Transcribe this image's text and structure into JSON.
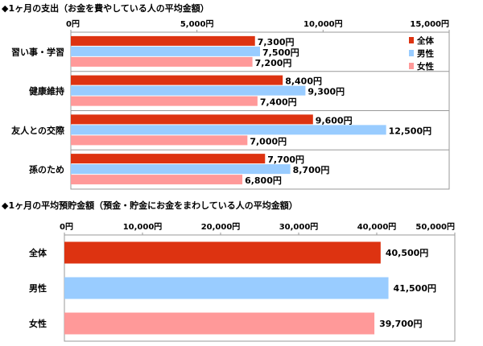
{
  "colors": {
    "all": "#dd3311",
    "male": "#99ccff",
    "female": "#ff9999"
  },
  "chart_data": [
    {
      "type": "bar",
      "orientation": "horizontal",
      "title": "◆1ヶ月の支出（お金を費やしている人の平均金額）",
      "xlim": [
        0,
        15000
      ],
      "ticks": [
        "0円",
        "5,000円",
        "10,000円",
        "15,000円"
      ],
      "tick_values": [
        0,
        5000,
        10000,
        15000
      ],
      "categories": [
        "習い事・学習",
        "健康維持",
        "友人との交際",
        "孫のため"
      ],
      "legend_position": "right",
      "series": [
        {
          "name": "全体",
          "color_key": "all",
          "values": [
            7300,
            8400,
            9600,
            7700
          ],
          "labels": [
            "7,300円",
            "8,400円",
            "9,600円",
            "7,700円"
          ]
        },
        {
          "name": "男性",
          "color_key": "male",
          "values": [
            7500,
            9300,
            12500,
            8700
          ],
          "labels": [
            "7,500円",
            "9,300円",
            "12,500円",
            "8,700円"
          ]
        },
        {
          "name": "女性",
          "color_key": "female",
          "values": [
            7200,
            7400,
            7000,
            6800
          ],
          "labels": [
            "7,200円",
            "7,400円",
            "7,000円",
            "6,800円"
          ]
        }
      ]
    },
    {
      "type": "bar",
      "orientation": "horizontal",
      "title": "◆1ヶ月の平均預貯金額（預金・貯金にお金をまわしている人の平均金額）",
      "xlim": [
        0,
        50000
      ],
      "ticks": [
        "0円",
        "10,000円",
        "20,000円",
        "30,000円",
        "40,000円",
        "50,000円"
      ],
      "tick_values": [
        0,
        10000,
        20000,
        30000,
        40000,
        50000
      ],
      "categories": [
        "全体",
        "男性",
        "女性"
      ],
      "bars": [
        {
          "color_key": "all",
          "value": 40500,
          "label": "40,500円"
        },
        {
          "color_key": "male",
          "value": 41500,
          "label": "41,500円"
        },
        {
          "color_key": "female",
          "value": 39700,
          "label": "39,700円"
        }
      ]
    }
  ]
}
